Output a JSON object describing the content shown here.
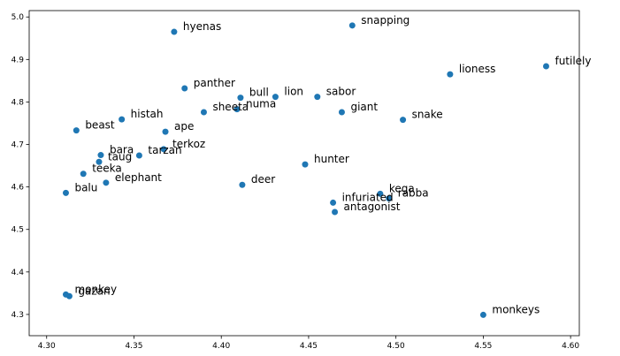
{
  "chart_data": {
    "type": "scatter",
    "title": "",
    "xlabel": "",
    "ylabel": "",
    "xlim": [
      4.29,
      4.605
    ],
    "ylim": [
      4.25,
      5.015
    ],
    "xticks": [
      "4.30",
      "4.35",
      "4.40",
      "4.45",
      "4.50",
      "4.55",
      "4.60"
    ],
    "yticks": [
      "4.3",
      "4.4",
      "4.5",
      "4.6",
      "4.7",
      "4.8",
      "4.9",
      "5.0"
    ],
    "grid": false,
    "legend": "none",
    "marker_color": "#1f77b4",
    "points": [
      {
        "label": "hyenas",
        "x": 4.373,
        "y": 4.965
      },
      {
        "label": "snapping",
        "x": 4.475,
        "y": 4.98
      },
      {
        "label": "lioness",
        "x": 4.531,
        "y": 4.865
      },
      {
        "label": "futilely",
        "x": 4.586,
        "y": 4.884
      },
      {
        "label": "panther",
        "x": 4.379,
        "y": 4.832
      },
      {
        "label": "bull",
        "x": 4.411,
        "y": 4.81
      },
      {
        "label": "lion",
        "x": 4.431,
        "y": 4.812
      },
      {
        "label": "sabor",
        "x": 4.455,
        "y": 4.812
      },
      {
        "label": "numa",
        "x": 4.409,
        "y": 4.783
      },
      {
        "label": "sheeta",
        "x": 4.39,
        "y": 4.776
      },
      {
        "label": "giant",
        "x": 4.469,
        "y": 4.776
      },
      {
        "label": "snake",
        "x": 4.504,
        "y": 4.758
      },
      {
        "label": "histah",
        "x": 4.343,
        "y": 4.759
      },
      {
        "label": "beast",
        "x": 4.317,
        "y": 4.733
      },
      {
        "label": "ape",
        "x": 4.368,
        "y": 4.73
      },
      {
        "label": "terkoz",
        "x": 4.367,
        "y": 4.689
      },
      {
        "label": "tarzan",
        "x": 4.353,
        "y": 4.674
      },
      {
        "label": "bara",
        "x": 4.331,
        "y": 4.675
      },
      {
        "label": "taug",
        "x": 4.33,
        "y": 4.659
      },
      {
        "label": "teeka",
        "x": 4.321,
        "y": 4.631
      },
      {
        "label": "elephant",
        "x": 4.334,
        "y": 4.61
      },
      {
        "label": "balu",
        "x": 4.311,
        "y": 4.586
      },
      {
        "label": "hunter",
        "x": 4.448,
        "y": 4.653
      },
      {
        "label": "deer",
        "x": 4.412,
        "y": 4.605
      },
      {
        "label": "kega",
        "x": 4.491,
        "y": 4.584
      },
      {
        "label": "rabba",
        "x": 4.496,
        "y": 4.573
      },
      {
        "label": "infuriated",
        "x": 4.464,
        "y": 4.563
      },
      {
        "label": "antagonist",
        "x": 4.465,
        "y": 4.541
      },
      {
        "label": "monkey",
        "x": 4.311,
        "y": 4.347
      },
      {
        "label": "gazan",
        "x": 4.313,
        "y": 4.343
      },
      {
        "label": "monkeys",
        "x": 4.55,
        "y": 4.299
      }
    ]
  }
}
